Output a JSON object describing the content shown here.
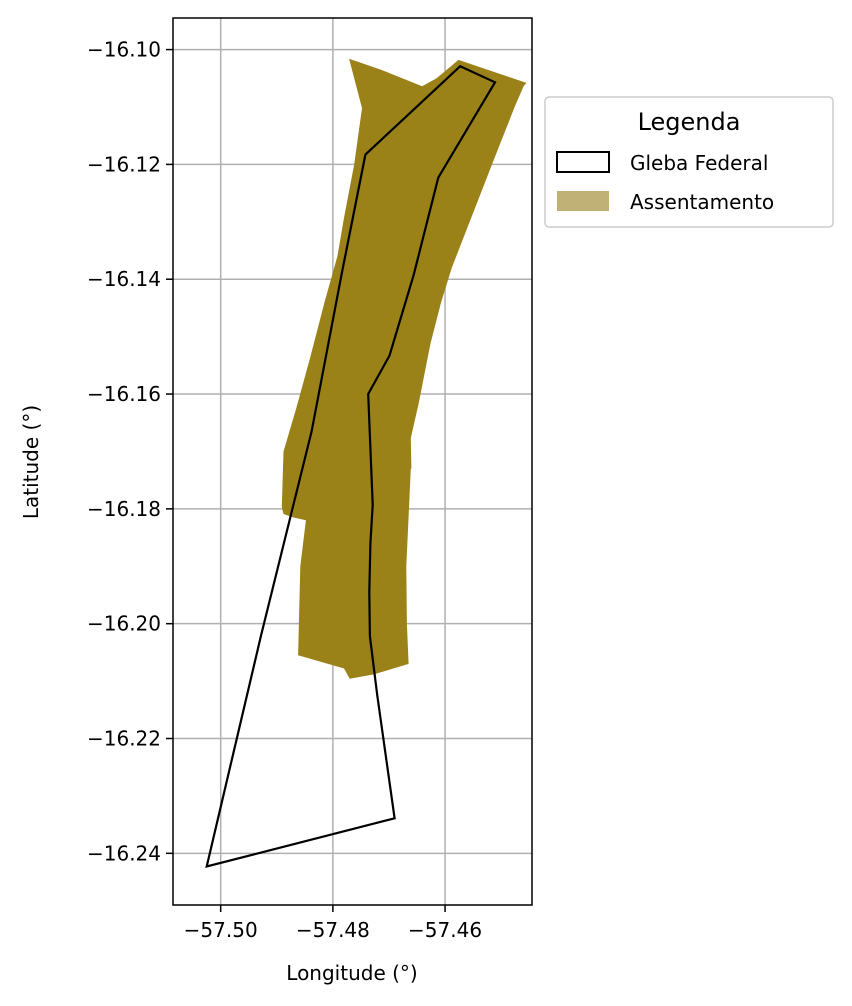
{
  "chart_data": {
    "type": "map",
    "xlabel": "Longitude (°)",
    "ylabel": "Latitude (°)",
    "xlim": [
      -57.5085,
      -57.4445
    ],
    "ylim": [
      -16.249,
      -16.0945
    ],
    "x_ticks": [
      -57.5,
      -57.48,
      -57.46
    ],
    "x_tick_labels": [
      "−57.50",
      "−57.48",
      "−57.46"
    ],
    "y_ticks": [
      -16.1,
      -16.12,
      -16.14,
      -16.16,
      -16.18,
      -16.2,
      -16.22,
      -16.24
    ],
    "y_tick_labels": [
      "−16.10",
      "−16.12",
      "−16.14",
      "−16.16",
      "−16.18",
      "−16.20",
      "−16.22",
      "−16.24"
    ],
    "grid": true,
    "legend": {
      "title": "Legenda",
      "placement": "outside-upper-right",
      "entries": [
        {
          "label": "Gleba Federal",
          "style": "outline",
          "edge_color": "#000000",
          "fill": "none"
        },
        {
          "label": "Assentamento",
          "style": "fill",
          "color": "#9a8219",
          "alpha": 0.6
        }
      ]
    },
    "layers": [
      {
        "name": "Assentamento",
        "color": "#9a8219",
        "polygon": [
          [
            -57.4771,
            -16.1016
          ],
          [
            -57.4714,
            -16.1035
          ],
          [
            -57.4641,
            -16.1064
          ],
          [
            -57.4615,
            -16.105
          ],
          [
            -57.4576,
            -16.1018
          ],
          [
            -57.4455,
            -16.1058
          ],
          [
            -57.446,
            -16.1064
          ],
          [
            -57.4476,
            -16.11
          ],
          [
            -57.4518,
            -16.1204
          ],
          [
            -57.4588,
            -16.138
          ],
          [
            -57.4607,
            -16.144
          ],
          [
            -57.4626,
            -16.1512
          ],
          [
            -57.4647,
            -16.1616
          ],
          [
            -57.4661,
            -16.1677
          ],
          [
            -57.466,
            -16.173
          ],
          [
            -57.4661,
            -16.173
          ],
          [
            -57.4669,
            -16.19
          ],
          [
            -57.4668,
            -16.2
          ],
          [
            -57.4665,
            -16.207
          ],
          [
            -57.4726,
            -16.2088
          ],
          [
            -57.477,
            -16.2096
          ],
          [
            -57.478,
            -16.2078
          ],
          [
            -57.4862,
            -16.2055
          ],
          [
            -57.4858,
            -16.19
          ],
          [
            -57.4848,
            -16.182
          ],
          [
            -57.487,
            -16.1815
          ],
          [
            -57.4888,
            -16.1809
          ],
          [
            -57.4891,
            -16.1797
          ],
          [
            -57.4888,
            -16.17
          ],
          [
            -57.4865,
            -16.1624
          ],
          [
            -57.484,
            -16.1535
          ],
          [
            -57.4815,
            -16.144
          ],
          [
            -57.4792,
            -16.136
          ],
          [
            -57.478,
            -16.1292
          ],
          [
            -57.4762,
            -16.12
          ],
          [
            -57.4748,
            -16.1102
          ]
        ]
      },
      {
        "name": "Gleba Federal",
        "color": "#000000",
        "polygon": [
          [
            -57.4573,
            -16.1029
          ],
          [
            -57.4511,
            -16.1057
          ],
          [
            -57.4612,
            -16.1223
          ],
          [
            -57.4656,
            -16.1393
          ],
          [
            -57.4699,
            -16.1533
          ],
          [
            -57.4737,
            -16.16
          ],
          [
            -57.4729,
            -16.1793
          ],
          [
            -57.4733,
            -16.186
          ],
          [
            -57.4735,
            -16.1945
          ],
          [
            -57.4734,
            -16.2022
          ],
          [
            -57.4721,
            -16.2124
          ],
          [
            -57.469,
            -16.2339
          ],
          [
            -57.5025,
            -16.2423
          ],
          [
            -57.4928,
            -16.202
          ],
          [
            -57.4838,
            -16.1665
          ],
          [
            -57.4785,
            -16.1394
          ],
          [
            -57.4742,
            -16.1183
          ]
        ]
      }
    ]
  }
}
